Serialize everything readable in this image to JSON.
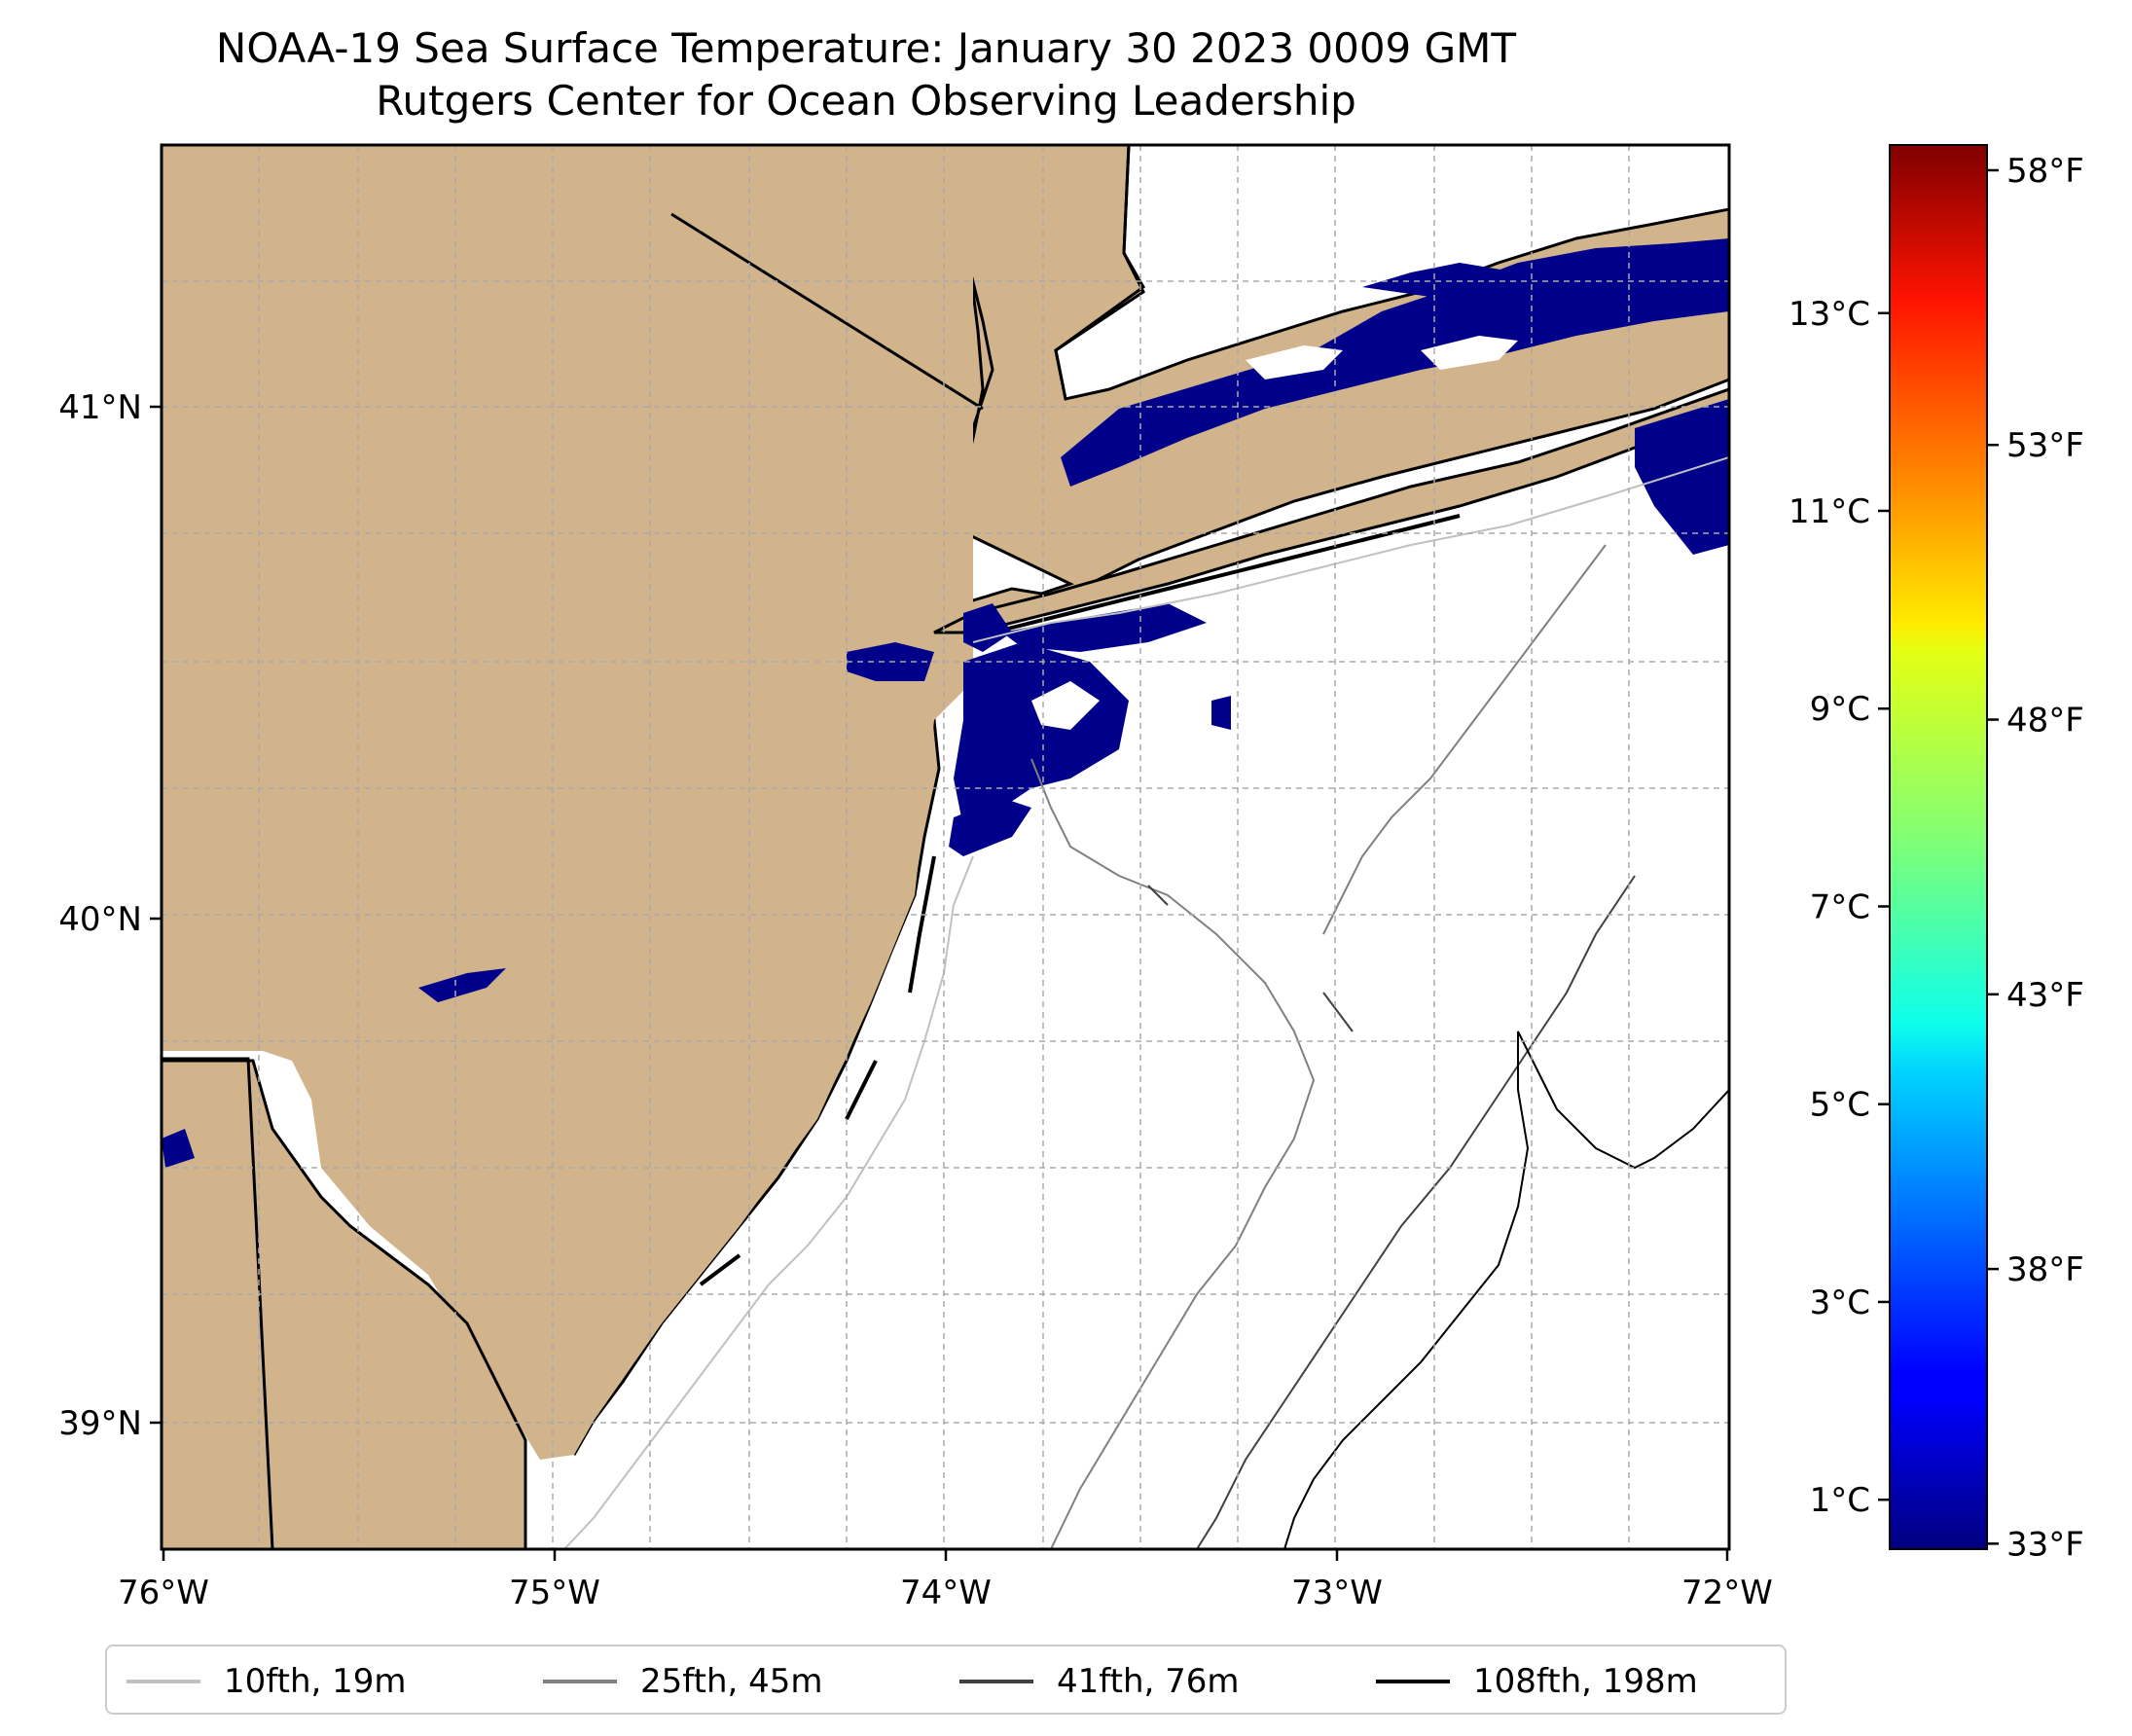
{
  "title": {
    "line1": "NOAA-19 Sea Surface Temperature: January 30 2023 0009 GMT",
    "line2": "Rutgers Center for Ocean Observing Leadership"
  },
  "map": {
    "lon_range": [
      -76,
      -72
    ],
    "lat_range": [
      38.7,
      41.55
    ],
    "land_color": "#d2b48c",
    "cold_sst_color": "#00008b",
    "grid": "dashed",
    "lon_ticks": [
      "76°W",
      "75°W",
      "74°W",
      "73°W",
      "72°W"
    ],
    "lat_ticks": [
      "41°N",
      "40°N",
      "39°N"
    ]
  },
  "colorbar": {
    "colormap": "jet",
    "range_c": [
      0.5,
      14.7
    ],
    "celsius_ticks": [
      "13°C",
      "11°C",
      "9°C",
      "7°C",
      "5°C",
      "3°C",
      "1°C"
    ],
    "celsius_values": [
      13,
      11,
      9,
      7,
      5,
      3,
      1
    ],
    "fahrenheit_ticks": [
      "58°F",
      "53°F",
      "48°F",
      "43°F",
      "38°F",
      "33°F"
    ],
    "fahrenheit_values": [
      58,
      53,
      48,
      43,
      38,
      33
    ]
  },
  "legend": {
    "items": [
      {
        "label": "10fth, 19m",
        "color": "#c0c0c0"
      },
      {
        "label": "25fth, 45m",
        "color": "#808080"
      },
      {
        "label": "41fth, 76m",
        "color": "#404040"
      },
      {
        "label": "108fth, 198m",
        "color": "#000000"
      }
    ]
  }
}
